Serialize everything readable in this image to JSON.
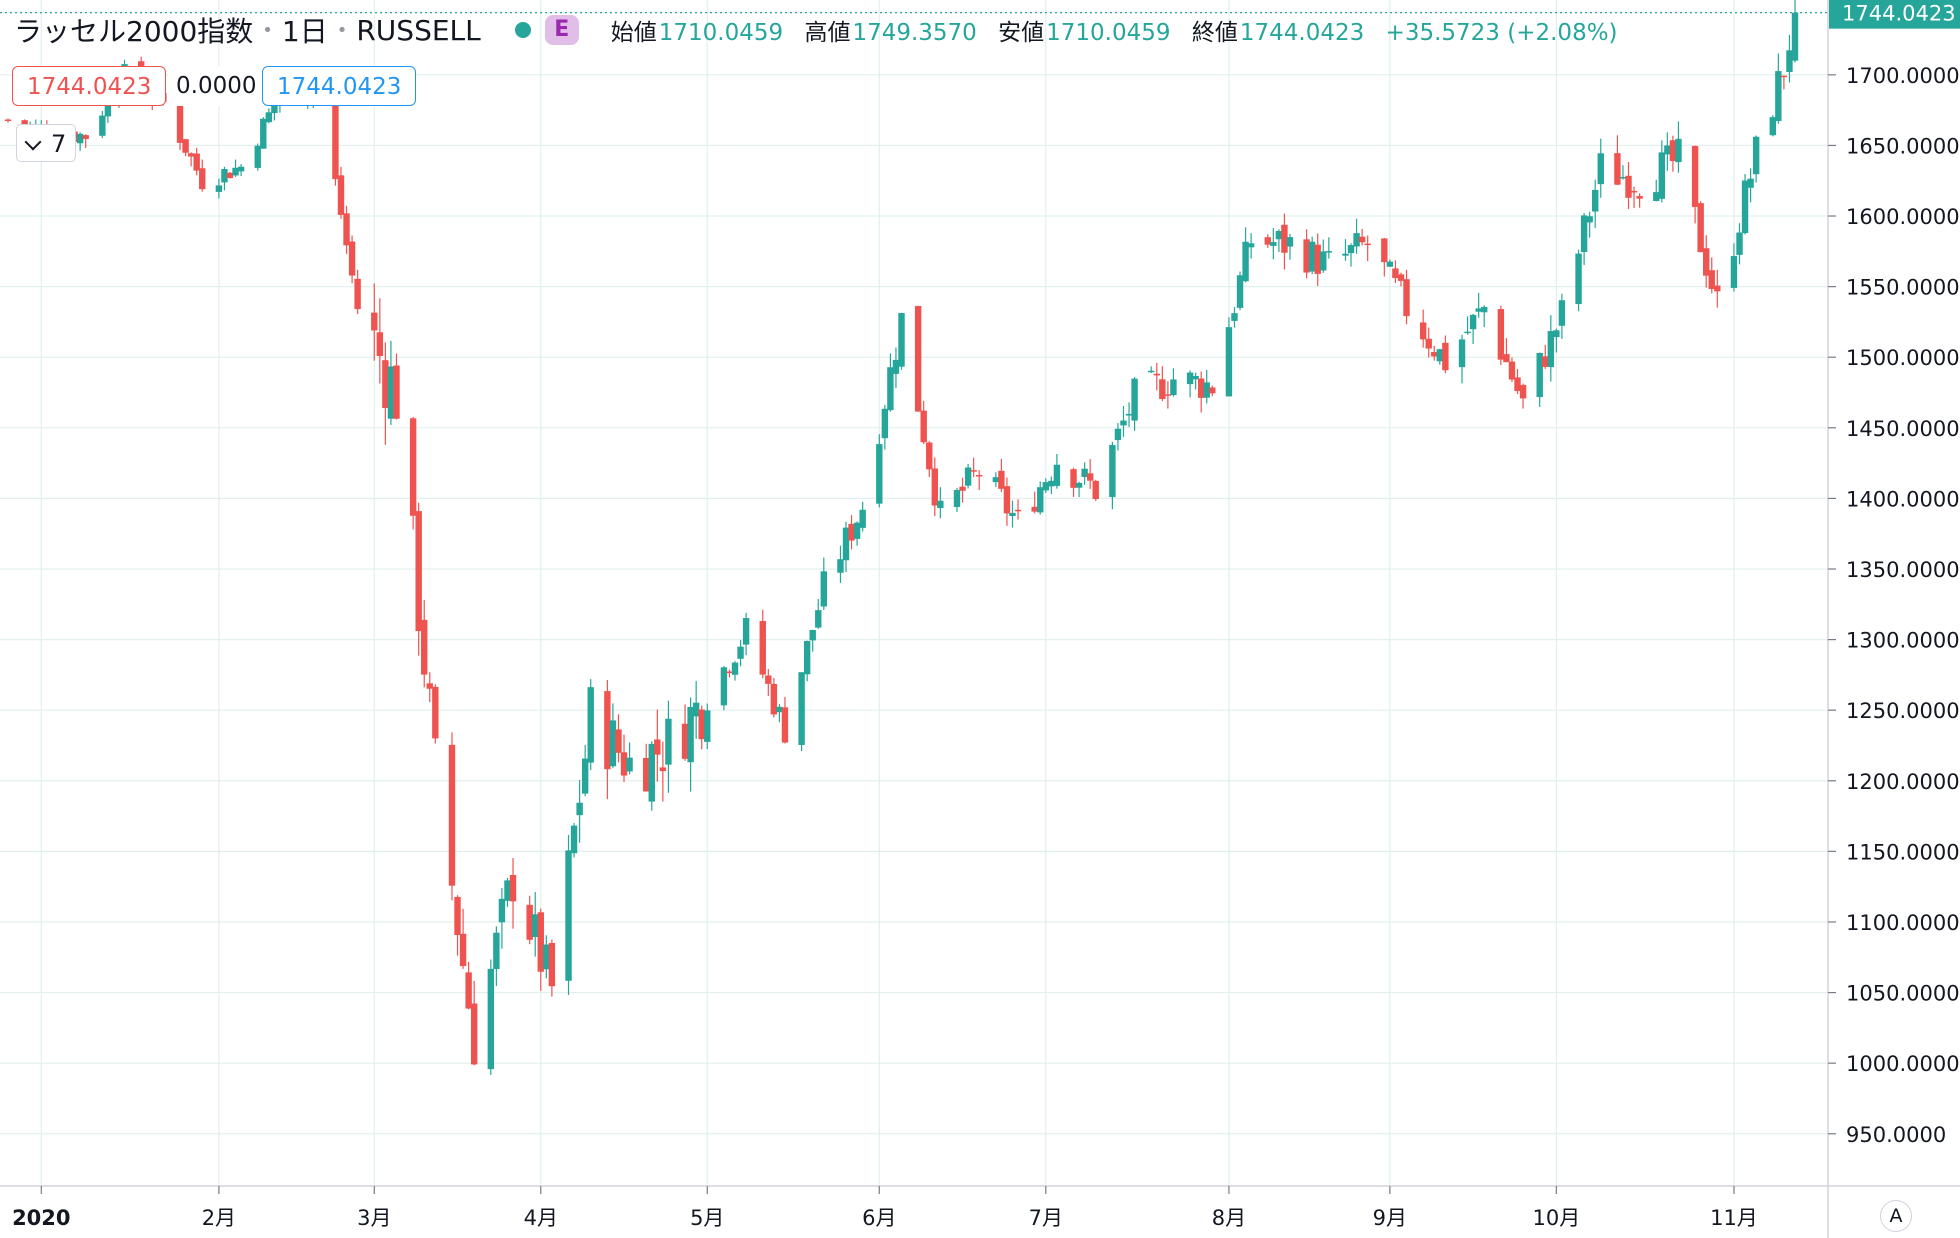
{
  "header": {
    "symbol_title": "ラッセル2000指数",
    "interval": "1日",
    "exchange": "RUSSELL",
    "badge_letter": "E",
    "ohlc": {
      "open_label": "始値",
      "open": "1710.0459",
      "high_label": "高値",
      "high": "1749.3570",
      "low_label": "安値",
      "low": "1710.0459",
      "close_label": "終値",
      "close": "1744.0423",
      "change": "+35.5723 (+2.08%)"
    }
  },
  "legend_boxes": {
    "value1": "1744.0423",
    "value2": "0.0000",
    "value3": "1744.0423"
  },
  "indicator_toggle": {
    "count": "7"
  },
  "price_scale": {
    "mode_button": "A"
  },
  "colors": {
    "up": "#26a69a",
    "down": "#ef5350",
    "grid": "#e0f0ee"
  },
  "chart_data": {
    "type": "candlestick",
    "title": "ラッセル2000指数",
    "y_axis": {
      "ticks": [
        "950.0000",
        "1000.0000",
        "1050.0000",
        "1100.0000",
        "1150.0000",
        "1200.0000",
        "1250.0000",
        "1300.0000",
        "1350.0000",
        "1400.0000",
        "1450.0000",
        "1500.0000",
        "1550.0000",
        "1600.0000",
        "1650.0000",
        "1700.0000"
      ],
      "tick_values": [
        950,
        1000,
        1050,
        1100,
        1150,
        1200,
        1250,
        1300,
        1350,
        1400,
        1450,
        1500,
        1550,
        1600,
        1650,
        1700
      ],
      "range": [
        913,
        1753
      ],
      "last_price_label": "1744.0423",
      "last_price": 1744.0423
    },
    "x_axis": {
      "labels": [
        "2020",
        "2月",
        "3月",
        "4月",
        "5月",
        "6月",
        "7月",
        "8月",
        "9月",
        "10月",
        "11月"
      ],
      "label_dates": [
        "2020-01-02",
        "2020-02-03",
        "2020-03-02",
        "2020-04-01",
        "2020-05-01",
        "2020-06-01",
        "2020-07-01",
        "2020-08-03",
        "2020-09-01",
        "2020-10-01",
        "2020-11-02"
      ],
      "date_range": [
        "2019-12-27",
        "2020-11-13"
      ]
    },
    "grid": true,
    "weekly_anchors": [
      {
        "date": "2019-12-27",
        "close": 1668
      },
      {
        "date": "2020-01-03",
        "close": 1660
      },
      {
        "date": "2020-01-10",
        "close": 1657
      },
      {
        "date": "2020-01-17",
        "close": 1700
      },
      {
        "date": "2020-01-24",
        "close": 1680
      },
      {
        "date": "2020-01-31",
        "close": 1625
      },
      {
        "date": "2020-02-07",
        "close": 1635
      },
      {
        "date": "2020-02-14",
        "close": 1686
      },
      {
        "date": "2020-02-21",
        "close": 1690
      },
      {
        "date": "2020-02-28",
        "close": 1535
      },
      {
        "date": "2020-03-06",
        "close": 1475
      },
      {
        "date": "2020-03-13",
        "close": 1210
      },
      {
        "date": "2020-03-20",
        "close": 1015
      },
      {
        "date": "2020-03-27",
        "close": 1132
      },
      {
        "date": "2020-04-03",
        "close": 1052
      },
      {
        "date": "2020-04-10",
        "close": 1246
      },
      {
        "date": "2020-04-17",
        "close": 1212
      },
      {
        "date": "2020-04-24",
        "close": 1226
      },
      {
        "date": "2020-05-01",
        "close": 1260
      },
      {
        "date": "2020-05-08",
        "close": 1306
      },
      {
        "date": "2020-05-15",
        "close": 1236
      },
      {
        "date": "2020-05-22",
        "close": 1337
      },
      {
        "date": "2020-05-29",
        "close": 1395
      },
      {
        "date": "2020-06-05",
        "close": 1527
      },
      {
        "date": "2020-06-12",
        "close": 1387
      },
      {
        "date": "2020-06-19",
        "close": 1419
      },
      {
        "date": "2020-06-26",
        "close": 1383
      },
      {
        "date": "2020-07-03",
        "close": 1428
      },
      {
        "date": "2020-07-10",
        "close": 1406
      },
      {
        "date": "2020-07-17",
        "close": 1472
      },
      {
        "date": "2020-07-24",
        "close": 1485
      },
      {
        "date": "2020-07-31",
        "close": 1480
      },
      {
        "date": "2020-08-07",
        "close": 1583
      },
      {
        "date": "2020-08-14",
        "close": 1580
      },
      {
        "date": "2020-08-21",
        "close": 1565
      },
      {
        "date": "2020-08-28",
        "close": 1580
      },
      {
        "date": "2020-09-04",
        "close": 1535
      },
      {
        "date": "2020-09-11",
        "close": 1497
      },
      {
        "date": "2020-09-18",
        "close": 1535
      },
      {
        "date": "2020-09-25",
        "close": 1467
      },
      {
        "date": "2020-10-02",
        "close": 1530
      },
      {
        "date": "2020-10-09",
        "close": 1634
      },
      {
        "date": "2020-10-16",
        "close": 1625
      },
      {
        "date": "2020-10-23",
        "close": 1640
      },
      {
        "date": "2020-10-30",
        "close": 1538
      },
      {
        "date": "2020-11-06",
        "close": 1644
      },
      {
        "date": "2020-11-11",
        "close": 1705
      },
      {
        "date": "2020-11-13",
        "close": 1744
      }
    ]
  }
}
